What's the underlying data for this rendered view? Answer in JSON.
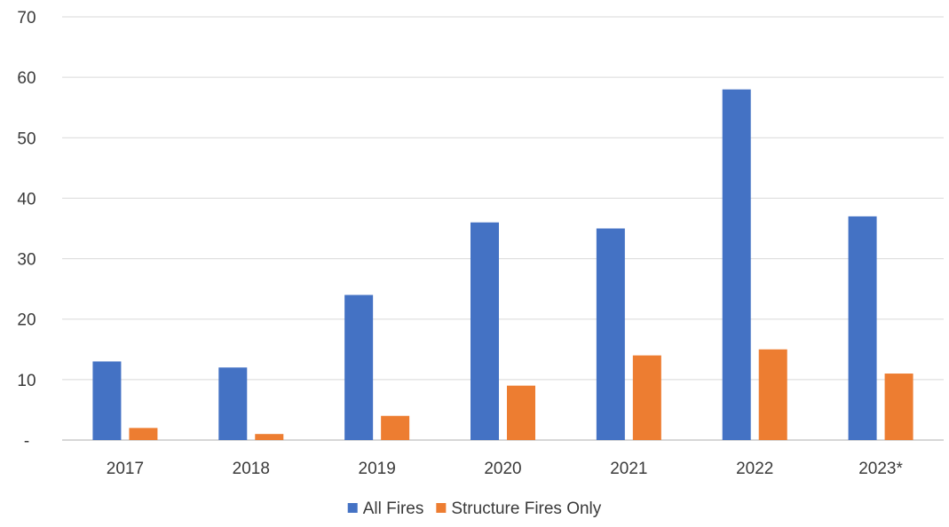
{
  "chart_data": {
    "type": "bar",
    "title": "",
    "xlabel": "",
    "ylabel": "",
    "categories": [
      "2017",
      "2018",
      "2019",
      "2020",
      "2021",
      "2022",
      "2023*"
    ],
    "series": [
      {
        "name": "All Fires",
        "color": "#4472C4",
        "values": [
          13,
          12,
          24,
          36,
          35,
          58,
          37
        ]
      },
      {
        "name": "Structure Fires Only",
        "color": "#ED7D31",
        "values": [
          2,
          1,
          4,
          9,
          14,
          15,
          11
        ]
      }
    ],
    "ylim": [
      0,
      70
    ],
    "yticks": [
      0,
      10,
      20,
      30,
      40,
      50,
      60,
      70
    ],
    "ytick_labels": [
      "-",
      "10",
      "20",
      "30",
      "40",
      "50",
      "60",
      "70"
    ],
    "grid": true,
    "legend_position": "bottom"
  }
}
